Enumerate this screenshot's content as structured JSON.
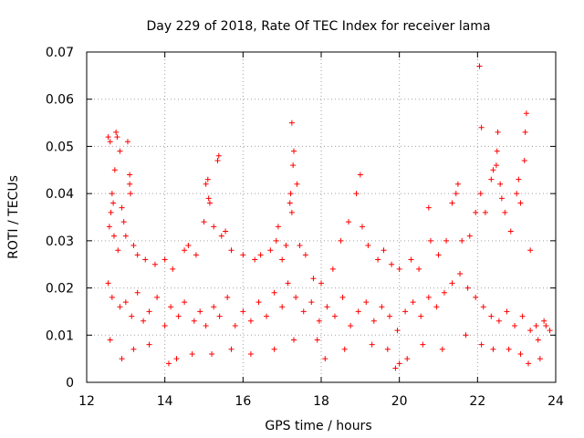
{
  "chart_data": {
    "type": "scatter",
    "title": "Day 229 of 2018, Rate Of TEC Index for receiver lama",
    "xlabel": "GPS time / hours",
    "ylabel": "ROTI / TECUs",
    "xlim": [
      12,
      24
    ],
    "ylim": [
      0,
      0.07
    ],
    "x_ticks": [
      12,
      14,
      16,
      18,
      20,
      22,
      24
    ],
    "x_tick_labels": [
      "12",
      "14",
      "16",
      "18",
      "20",
      "22",
      "24"
    ],
    "y_ticks": [
      0,
      0.01,
      0.02,
      0.03,
      0.04,
      0.05,
      0.06,
      0.07
    ],
    "y_tick_labels": [
      "0",
      "0.01",
      "0.02",
      "0.03",
      "0.04",
      "0.05",
      "0.06",
      "0.07"
    ],
    "grid": true,
    "marker": "plus",
    "color": "#ff0000",
    "series": [
      {
        "name": "ROTI",
        "points": [
          [
            12.55,
            0.052
          ],
          [
            12.6,
            0.051
          ],
          [
            12.75,
            0.053
          ],
          [
            12.78,
            0.052
          ],
          [
            12.72,
            0.045
          ],
          [
            12.85,
            0.049
          ],
          [
            13.05,
            0.051
          ],
          [
            13.1,
            0.044
          ],
          [
            13.1,
            0.042
          ],
          [
            13.12,
            0.04
          ],
          [
            12.65,
            0.04
          ],
          [
            12.68,
            0.038
          ],
          [
            12.62,
            0.036
          ],
          [
            12.9,
            0.037
          ],
          [
            12.95,
            0.034
          ],
          [
            13.0,
            0.031
          ],
          [
            13.2,
            0.029
          ],
          [
            12.58,
            0.033
          ],
          [
            12.7,
            0.031
          ],
          [
            12.8,
            0.028
          ],
          [
            13.3,
            0.027
          ],
          [
            13.5,
            0.026
          ],
          [
            13.75,
            0.025
          ],
          [
            14.0,
            0.026
          ],
          [
            14.2,
            0.024
          ],
          [
            14.5,
            0.028
          ],
          [
            14.6,
            0.029
          ],
          [
            14.8,
            0.027
          ],
          [
            15.0,
            0.034
          ],
          [
            15.05,
            0.042
          ],
          [
            15.1,
            0.043
          ],
          [
            15.12,
            0.039
          ],
          [
            15.15,
            0.038
          ],
          [
            15.25,
            0.033
          ],
          [
            15.35,
            0.047
          ],
          [
            15.38,
            0.048
          ],
          [
            15.45,
            0.031
          ],
          [
            15.55,
            0.032
          ],
          [
            15.7,
            0.028
          ],
          [
            16.0,
            0.027
          ],
          [
            16.3,
            0.026
          ],
          [
            16.45,
            0.027
          ],
          [
            16.7,
            0.028
          ],
          [
            16.85,
            0.03
          ],
          [
            16.9,
            0.033
          ],
          [
            17.0,
            0.026
          ],
          [
            17.1,
            0.029
          ],
          [
            17.2,
            0.038
          ],
          [
            17.22,
            0.04
          ],
          [
            17.25,
            0.036
          ],
          [
            17.28,
            0.046
          ],
          [
            17.3,
            0.049
          ],
          [
            17.25,
            0.055
          ],
          [
            17.38,
            0.042
          ],
          [
            17.45,
            0.029
          ],
          [
            17.6,
            0.027
          ],
          [
            17.8,
            0.022
          ],
          [
            18.0,
            0.021
          ],
          [
            18.3,
            0.024
          ],
          [
            18.5,
            0.03
          ],
          [
            18.7,
            0.034
          ],
          [
            18.9,
            0.04
          ],
          [
            19.0,
            0.044
          ],
          [
            19.05,
            0.033
          ],
          [
            19.2,
            0.029
          ],
          [
            19.45,
            0.026
          ],
          [
            19.6,
            0.028
          ],
          [
            19.8,
            0.025
          ],
          [
            20.0,
            0.024
          ],
          [
            20.3,
            0.026
          ],
          [
            20.5,
            0.024
          ],
          [
            20.75,
            0.037
          ],
          [
            20.8,
            0.03
          ],
          [
            21.0,
            0.027
          ],
          [
            21.2,
            0.03
          ],
          [
            21.35,
            0.038
          ],
          [
            21.45,
            0.04
          ],
          [
            21.5,
            0.042
          ],
          [
            21.6,
            0.03
          ],
          [
            21.8,
            0.031
          ],
          [
            21.95,
            0.036
          ],
          [
            22.05,
            0.067
          ],
          [
            22.1,
            0.054
          ],
          [
            22.08,
            0.04
          ],
          [
            22.2,
            0.036
          ],
          [
            22.35,
            0.043
          ],
          [
            22.4,
            0.045
          ],
          [
            22.48,
            0.046
          ],
          [
            22.5,
            0.049
          ],
          [
            22.52,
            0.053
          ],
          [
            22.58,
            0.042
          ],
          [
            22.62,
            0.039
          ],
          [
            22.7,
            0.036
          ],
          [
            22.85,
            0.032
          ],
          [
            23.0,
            0.04
          ],
          [
            23.05,
            0.043
          ],
          [
            23.1,
            0.038
          ],
          [
            23.2,
            0.047
          ],
          [
            23.22,
            0.053
          ],
          [
            23.25,
            0.057
          ],
          [
            23.35,
            0.028
          ],
          [
            23.5,
            0.012
          ],
          [
            23.7,
            0.013
          ],
          [
            23.85,
            0.011
          ],
          [
            12.6,
            0.009
          ],
          [
            12.9,
            0.005
          ],
          [
            13.2,
            0.007
          ],
          [
            13.6,
            0.008
          ],
          [
            14.1,
            0.004
          ],
          [
            14.3,
            0.005
          ],
          [
            14.7,
            0.006
          ],
          [
            15.2,
            0.006
          ],
          [
            15.7,
            0.007
          ],
          [
            16.2,
            0.006
          ],
          [
            16.8,
            0.007
          ],
          [
            17.3,
            0.009
          ],
          [
            17.9,
            0.009
          ],
          [
            18.1,
            0.005
          ],
          [
            18.6,
            0.007
          ],
          [
            19.3,
            0.008
          ],
          [
            19.7,
            0.007
          ],
          [
            19.9,
            0.003
          ],
          [
            20.0,
            0.004
          ],
          [
            20.2,
            0.005
          ],
          [
            20.6,
            0.008
          ],
          [
            21.1,
            0.007
          ],
          [
            21.7,
            0.01
          ],
          [
            22.1,
            0.008
          ],
          [
            22.4,
            0.007
          ],
          [
            22.8,
            0.007
          ],
          [
            23.1,
            0.006
          ],
          [
            23.3,
            0.004
          ],
          [
            23.6,
            0.005
          ],
          [
            12.55,
            0.021
          ],
          [
            12.65,
            0.018
          ],
          [
            12.85,
            0.016
          ],
          [
            13.0,
            0.017
          ],
          [
            13.15,
            0.014
          ],
          [
            13.3,
            0.019
          ],
          [
            13.45,
            0.013
          ],
          [
            13.6,
            0.015
          ],
          [
            13.8,
            0.018
          ],
          [
            14.0,
            0.012
          ],
          [
            14.15,
            0.016
          ],
          [
            14.35,
            0.014
          ],
          [
            14.5,
            0.017
          ],
          [
            14.75,
            0.013
          ],
          [
            14.9,
            0.015
          ],
          [
            15.05,
            0.012
          ],
          [
            15.25,
            0.016
          ],
          [
            15.4,
            0.014
          ],
          [
            15.6,
            0.018
          ],
          [
            15.8,
            0.012
          ],
          [
            16.0,
            0.015
          ],
          [
            16.2,
            0.013
          ],
          [
            16.4,
            0.017
          ],
          [
            16.6,
            0.014
          ],
          [
            16.8,
            0.019
          ],
          [
            17.0,
            0.016
          ],
          [
            17.15,
            0.021
          ],
          [
            17.35,
            0.018
          ],
          [
            17.55,
            0.015
          ],
          [
            17.75,
            0.017
          ],
          [
            17.95,
            0.013
          ],
          [
            18.15,
            0.016
          ],
          [
            18.35,
            0.014
          ],
          [
            18.55,
            0.018
          ],
          [
            18.75,
            0.012
          ],
          [
            18.95,
            0.015
          ],
          [
            19.15,
            0.017
          ],
          [
            19.35,
            0.013
          ],
          [
            19.55,
            0.016
          ],
          [
            19.75,
            0.014
          ],
          [
            19.95,
            0.011
          ],
          [
            20.15,
            0.015
          ],
          [
            20.35,
            0.017
          ],
          [
            20.55,
            0.014
          ],
          [
            20.75,
            0.018
          ],
          [
            20.95,
            0.016
          ],
          [
            21.15,
            0.019
          ],
          [
            21.35,
            0.021
          ],
          [
            21.55,
            0.023
          ],
          [
            21.75,
            0.02
          ],
          [
            21.95,
            0.018
          ],
          [
            22.15,
            0.016
          ],
          [
            22.35,
            0.014
          ],
          [
            22.55,
            0.013
          ],
          [
            22.75,
            0.015
          ],
          [
            22.95,
            0.012
          ],
          [
            23.15,
            0.014
          ],
          [
            23.35,
            0.011
          ],
          [
            23.55,
            0.009
          ],
          [
            23.75,
            0.012
          ]
        ]
      }
    ]
  }
}
